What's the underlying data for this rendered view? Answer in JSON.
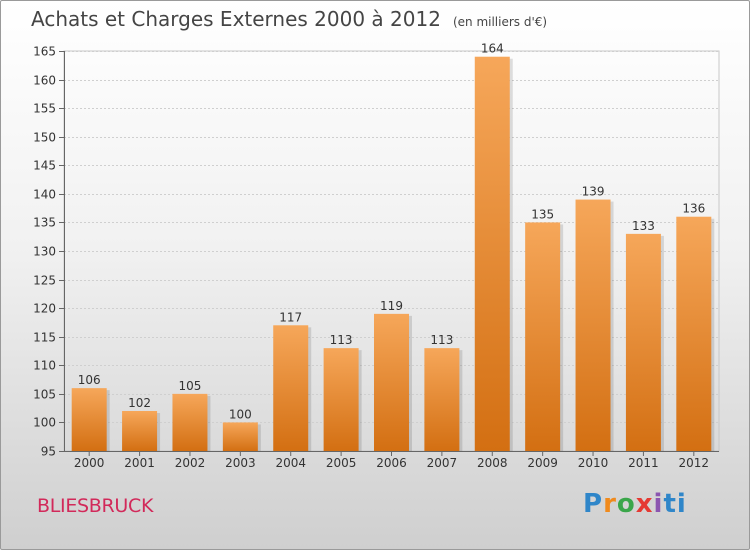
{
  "header": {
    "title": "Achats et Charges Externes 2000 à 2012",
    "unit": "(en milliers d'€)"
  },
  "footer": {
    "commune": "BLIESBRUCK",
    "logo_text": "Proxiti"
  },
  "colors": {
    "bar_top": "#f6a75a",
    "bar_bottom": "#d36f12",
    "commune": "#d2295a"
  },
  "chart_data": {
    "type": "bar",
    "title": "Achats et Charges Externes 2000 à 2012",
    "subtitle": "(en milliers d'€)",
    "categories": [
      "2000",
      "2001",
      "2002",
      "2003",
      "2004",
      "2005",
      "2006",
      "2007",
      "2008",
      "2009",
      "2010",
      "2011",
      "2012"
    ],
    "values": [
      106,
      102,
      105,
      100,
      117,
      113,
      119,
      113,
      164,
      135,
      139,
      133,
      136
    ],
    "ylim": [
      95,
      165
    ],
    "yticks": [
      95,
      100,
      105,
      110,
      115,
      120,
      125,
      130,
      135,
      140,
      145,
      150,
      155,
      160,
      165
    ],
    "grid": true,
    "data_labels": true
  }
}
